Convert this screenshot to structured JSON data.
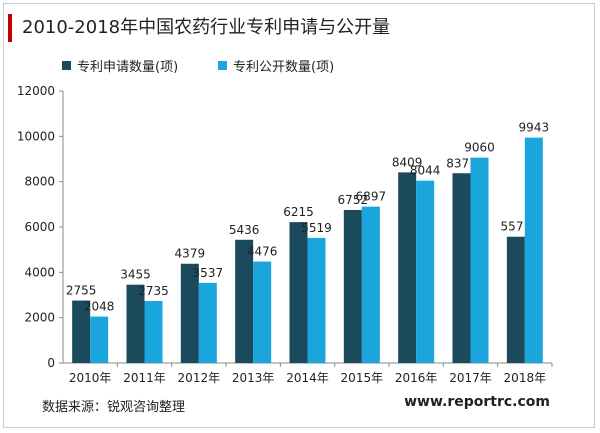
{
  "header": {
    "title": "2010-2018年中国农药行业专利申请与公开量"
  },
  "footer": {
    "source": "数据来源：锐观咨询整理",
    "brand": "www.reportrc.com"
  },
  "colors": {
    "accent": "#c00000",
    "series1": "#1b4a5c",
    "series2": "#1aa6dd"
  },
  "chart_data": {
    "type": "bar",
    "title": "2010-2018年中国农药行业专利申请与公开量",
    "xlabel": "",
    "ylabel": "",
    "ylim": [
      0,
      12000
    ],
    "yticks": [
      0,
      2000,
      4000,
      6000,
      8000,
      10000,
      12000
    ],
    "grid": false,
    "legend": "top",
    "categories": [
      "2010年",
      "2011年",
      "2012年",
      "2013年",
      "2014年",
      "2015年",
      "2016年",
      "2017年",
      "2018年"
    ],
    "series": [
      {
        "name": "专利申请数量(项)",
        "values": [
          2755,
          3455,
          4379,
          5436,
          6215,
          6752,
          8409,
          8371,
          5571
        ]
      },
      {
        "name": "专利公开数量(项)",
        "values": [
          2048,
          2735,
          3537,
          4476,
          5519,
          6897,
          8044,
          9060,
          9943
        ]
      }
    ]
  }
}
